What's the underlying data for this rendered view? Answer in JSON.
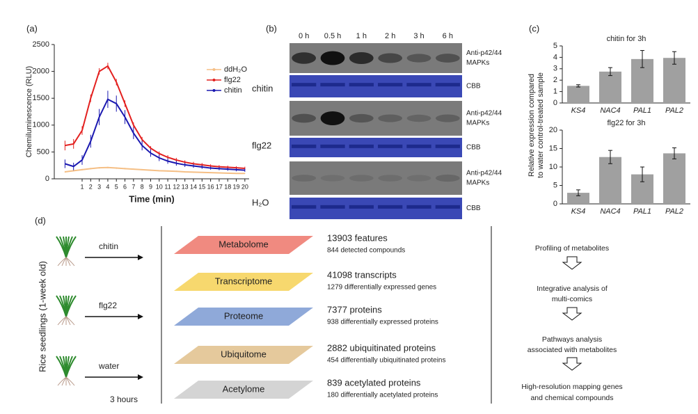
{
  "panels": [
    "(a)",
    "(b)",
    "(c)",
    "(d)"
  ],
  "chart_data": [
    {
      "type": "line",
      "y_label": "Chemiluminescence (RLU)",
      "x_label": "Time (min)",
      "x": [
        -1,
        0,
        1,
        2,
        3,
        4,
        5,
        6,
        7,
        8,
        9,
        10,
        11,
        12,
        13,
        14,
        15,
        16,
        17,
        18,
        19,
        20
      ],
      "xlim": [
        -2.25,
        20.5
      ],
      "xticks": [
        1,
        2,
        3,
        4,
        5,
        6,
        7,
        8,
        9,
        10,
        11,
        12,
        13,
        14,
        15,
        16,
        17,
        18,
        19,
        20
      ],
      "ylim": [
        0,
        2500
      ],
      "yticks": [
        0,
        500,
        1000,
        1500,
        2000,
        2500
      ],
      "series": [
        {
          "name": "ddH₂O",
          "color": "#f5bf85",
          "values": [
            130,
            150,
            170,
            190,
            205,
            210,
            200,
            190,
            180,
            170,
            160,
            150,
            145,
            140,
            130,
            125,
            120,
            115,
            110,
            105,
            100,
            100
          ],
          "errors": [
            15,
            15,
            15,
            15,
            15,
            15,
            15,
            15,
            12,
            12,
            12,
            12,
            12,
            12,
            10,
            10,
            10,
            10,
            10,
            10,
            10,
            10
          ]
        },
        {
          "name": "flg22",
          "color": "#e3201f",
          "values": [
            620,
            650,
            900,
            1500,
            2000,
            2100,
            1800,
            1400,
            1000,
            730,
            570,
            470,
            400,
            350,
            310,
            280,
            260,
            240,
            225,
            215,
            205,
            195
          ],
          "errors": [
            90,
            90,
            80,
            70,
            60,
            60,
            60,
            60,
            50,
            50,
            40,
            40,
            40,
            40,
            35,
            35,
            35,
            30,
            30,
            30,
            30,
            30
          ]
        },
        {
          "name": "chitin",
          "color": "#1a18b0",
          "values": [
            280,
            230,
            350,
            700,
            1150,
            1480,
            1400,
            1150,
            850,
            620,
            480,
            390,
            330,
            290,
            260,
            240,
            220,
            200,
            190,
            180,
            170,
            160
          ],
          "errors": [
            80,
            70,
            90,
            120,
            150,
            160,
            150,
            130,
            110,
            90,
            70,
            60,
            50,
            45,
            40,
            35,
            35,
            30,
            30,
            30,
            30,
            30
          ]
        }
      ]
    },
    {
      "type": "bar",
      "title": "chitin for 3h",
      "y_label": [
        "Relative expression compared",
        "to water control-treated sample"
      ],
      "categories": [
        "KS4",
        "NAC4",
        "PAL1",
        "PAL2"
      ],
      "values": [
        1.5,
        2.75,
        3.85,
        3.95
      ],
      "errors": [
        0.1,
        0.35,
        0.75,
        0.55
      ],
      "color": "#a0a0a0",
      "ylim": [
        0,
        5
      ],
      "yticks": [
        0,
        1,
        2,
        3,
        4,
        5
      ]
    },
    {
      "type": "bar",
      "title": "flg22 for 3h",
      "categories": [
        "KS4",
        "NAC4",
        "PAL1",
        "PAL2"
      ],
      "values": [
        3,
        12.7,
        8,
        13.7
      ],
      "errors": [
        0.8,
        1.8,
        2,
        1.5
      ],
      "color": "#a0a0a0",
      "ylim": [
        0,
        20
      ],
      "yticks": [
        0,
        5,
        10,
        15,
        20
      ]
    }
  ],
  "blot": {
    "times": [
      "0 h",
      "0.5 h",
      "1 h",
      "2 h",
      "3 h",
      "6 h"
    ],
    "treatments": [
      "chitin",
      "flg22",
      "H₂O"
    ],
    "labels": [
      "Anti-p42/44",
      "MAPKs",
      "CBB"
    ]
  },
  "workflow": {
    "y_label": "Rice seedlings (1-week old)",
    "treatments": [
      "chitin",
      "flg22",
      "water"
    ],
    "duration": "3 hours",
    "omics": [
      {
        "name": "Metabolome",
        "count": "13903 features",
        "detail": "844 detected compounds",
        "color": "#f08a80"
      },
      {
        "name": "Transcriptome",
        "count": "41098 transcripts",
        "detail": "1279 differentially expressed genes",
        "color": "#f7d86e"
      },
      {
        "name": "Proteome",
        "count": "7377 proteins",
        "detail": "938 differentially expressed proteins",
        "color": "#8fa9d9"
      },
      {
        "name": "Ubiquitome",
        "count": "2882 ubiquitinated proteins",
        "detail": "454 differentially ubiquitinated proteins",
        "color": "#e5c99c"
      },
      {
        "name": "Acetylome",
        "count": "839 acetylated proteins",
        "detail": "180 differentially acetylated proteins",
        "color": "#d4d4d4"
      }
    ],
    "steps": [
      [
        "Profiling of metabolites"
      ],
      [
        "Integrative analysis of",
        "multi-comics"
      ],
      [
        "Pathways analysis",
        "associated with metabolites"
      ],
      [
        "High-resolution mapping genes",
        "and chemical compounds"
      ]
    ]
  }
}
